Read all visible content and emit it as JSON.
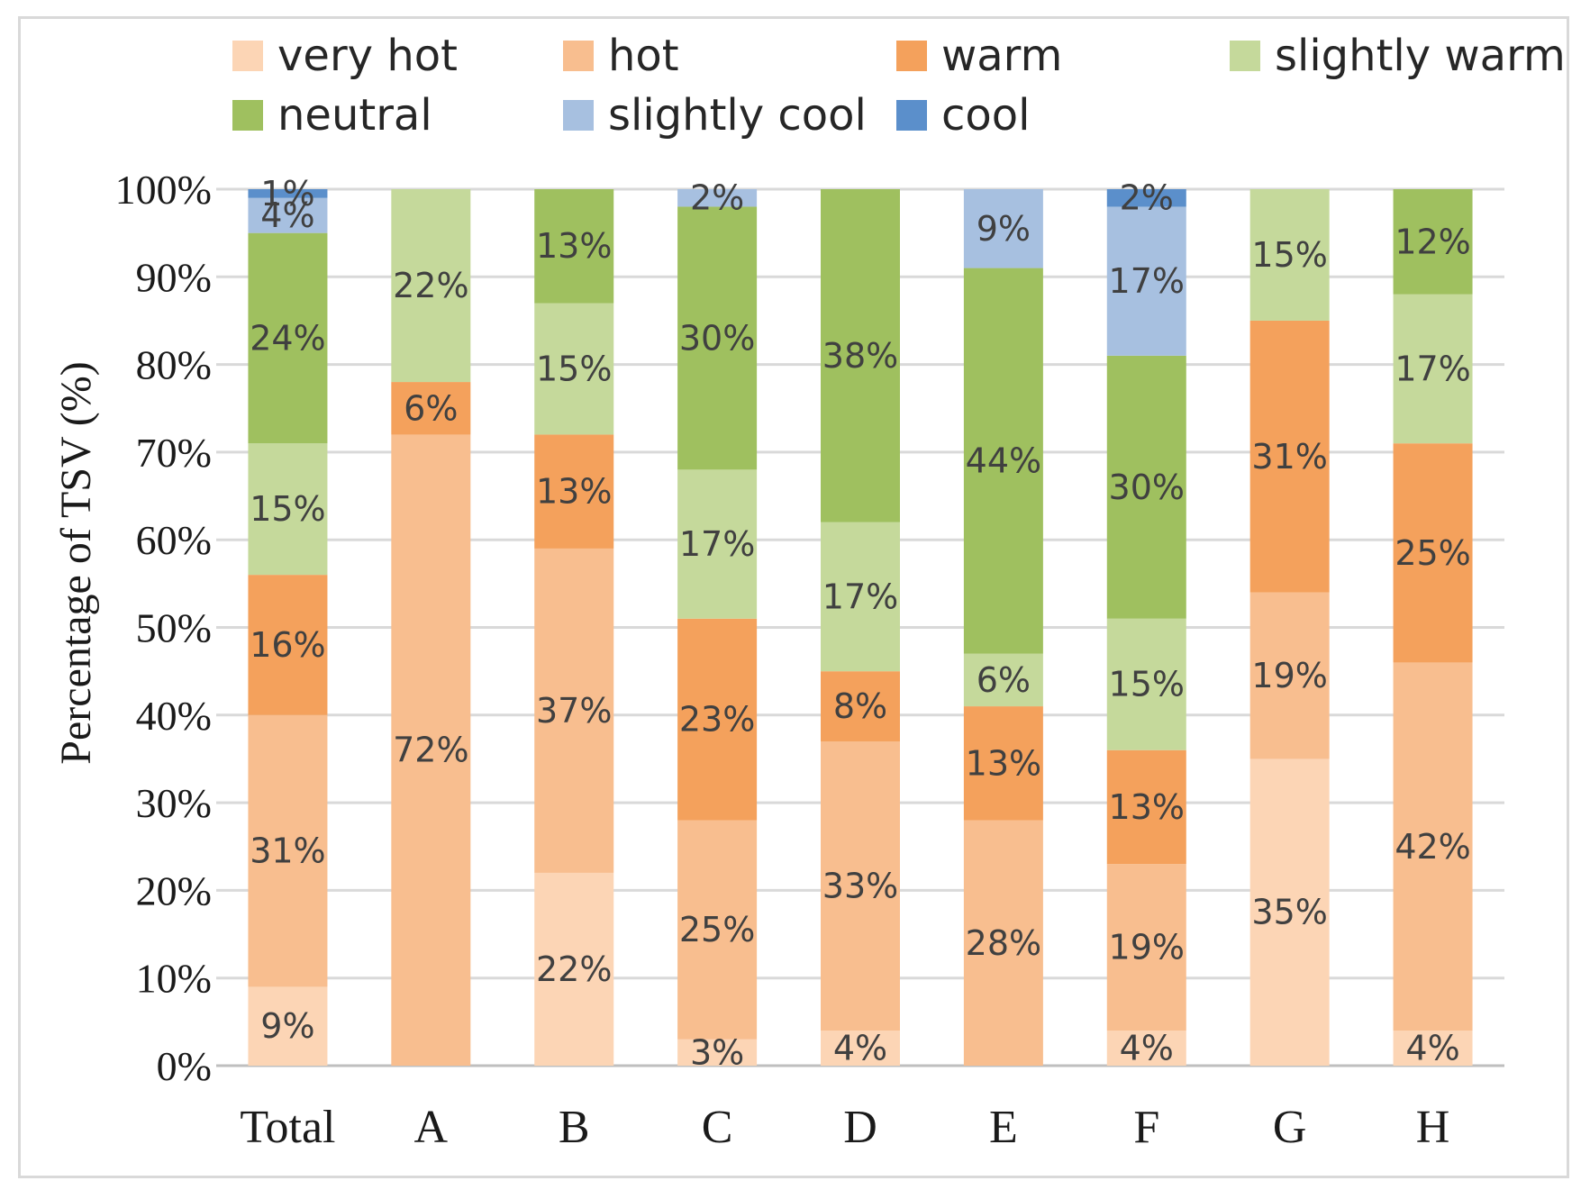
{
  "chart_data": {
    "type": "bar",
    "stacked": true,
    "title": "",
    "xlabel": "",
    "ylabel": "Percentage of TSV (%)",
    "ylim": [
      0,
      100
    ],
    "y_ticks": [
      "0%",
      "10%",
      "20%",
      "30%",
      "40%",
      "50%",
      "60%",
      "70%",
      "80%",
      "90%",
      "100%"
    ],
    "grid": true,
    "legend_position": "top",
    "categories": [
      "Total",
      "A",
      "B",
      "C",
      "D",
      "E",
      "F",
      "G",
      "H"
    ],
    "series": [
      {
        "name": "very hot",
        "color": "#fcd5b5",
        "values": [
          9,
          0,
          22,
          3,
          4,
          0,
          4,
          35,
          4
        ]
      },
      {
        "name": "hot",
        "color": "#f8be8f",
        "values": [
          31,
          72,
          37,
          25,
          33,
          28,
          19,
          19,
          42
        ]
      },
      {
        "name": "warm",
        "color": "#f4a15c",
        "values": [
          16,
          6,
          13,
          23,
          8,
          13,
          13,
          31,
          25
        ]
      },
      {
        "name": "slightly warm",
        "color": "#c5d99b",
        "values": [
          15,
          22,
          15,
          17,
          17,
          6,
          15,
          15,
          17
        ]
      },
      {
        "name": "neutral",
        "color": "#9fc05f",
        "values": [
          24,
          0,
          13,
          30,
          38,
          44,
          30,
          0,
          12
        ]
      },
      {
        "name": "slightly cool",
        "color": "#a7c0e0",
        "values": [
          4,
          0,
          0,
          2,
          0,
          9,
          17,
          0,
          0
        ]
      },
      {
        "name": "cool",
        "color": "#5b8fcb",
        "values": [
          1,
          0,
          0,
          0,
          0,
          0,
          2,
          0,
          0
        ]
      }
    ],
    "label_suffix": "%"
  },
  "colors": {
    "grid": "#d9d9d9",
    "axis": "#bfbfbf",
    "label_text": "#404040"
  }
}
